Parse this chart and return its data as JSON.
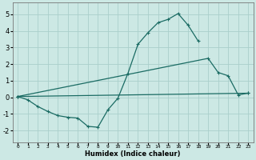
{
  "xlabel": "Humidex (Indice chaleur)",
  "background_color": "#cce8e4",
  "grid_color": "#aacfcb",
  "line_color": "#1a6b63",
  "xlim": [
    -0.5,
    23.5
  ],
  "ylim": [
    -2.7,
    5.7
  ],
  "yticks": [
    -2,
    -1,
    0,
    1,
    2,
    3,
    4,
    5
  ],
  "xticks": [
    0,
    1,
    2,
    3,
    4,
    5,
    6,
    7,
    8,
    9,
    10,
    11,
    12,
    13,
    14,
    15,
    16,
    17,
    18,
    19,
    20,
    21,
    22,
    23
  ],
  "line1_x": [
    0,
    1,
    2,
    3,
    4,
    5,
    6,
    7,
    8,
    9,
    10,
    11,
    12,
    13,
    14,
    15,
    16,
    17,
    18
  ],
  "line1_y": [
    0.05,
    -0.15,
    -0.55,
    -0.85,
    -1.1,
    -1.2,
    -1.25,
    -1.75,
    -1.8,
    -0.75,
    -0.05,
    1.45,
    3.2,
    3.9,
    4.5,
    4.7,
    5.05,
    4.35,
    3.4
  ],
  "line2_x": [
    0,
    19,
    20,
    21,
    22,
    23
  ],
  "line2_y": [
    0.05,
    2.35,
    1.5,
    1.3,
    0.15,
    0.25
  ],
  "line3_x": [
    0,
    23
  ],
  "line3_y": [
    0.05,
    0.25
  ]
}
